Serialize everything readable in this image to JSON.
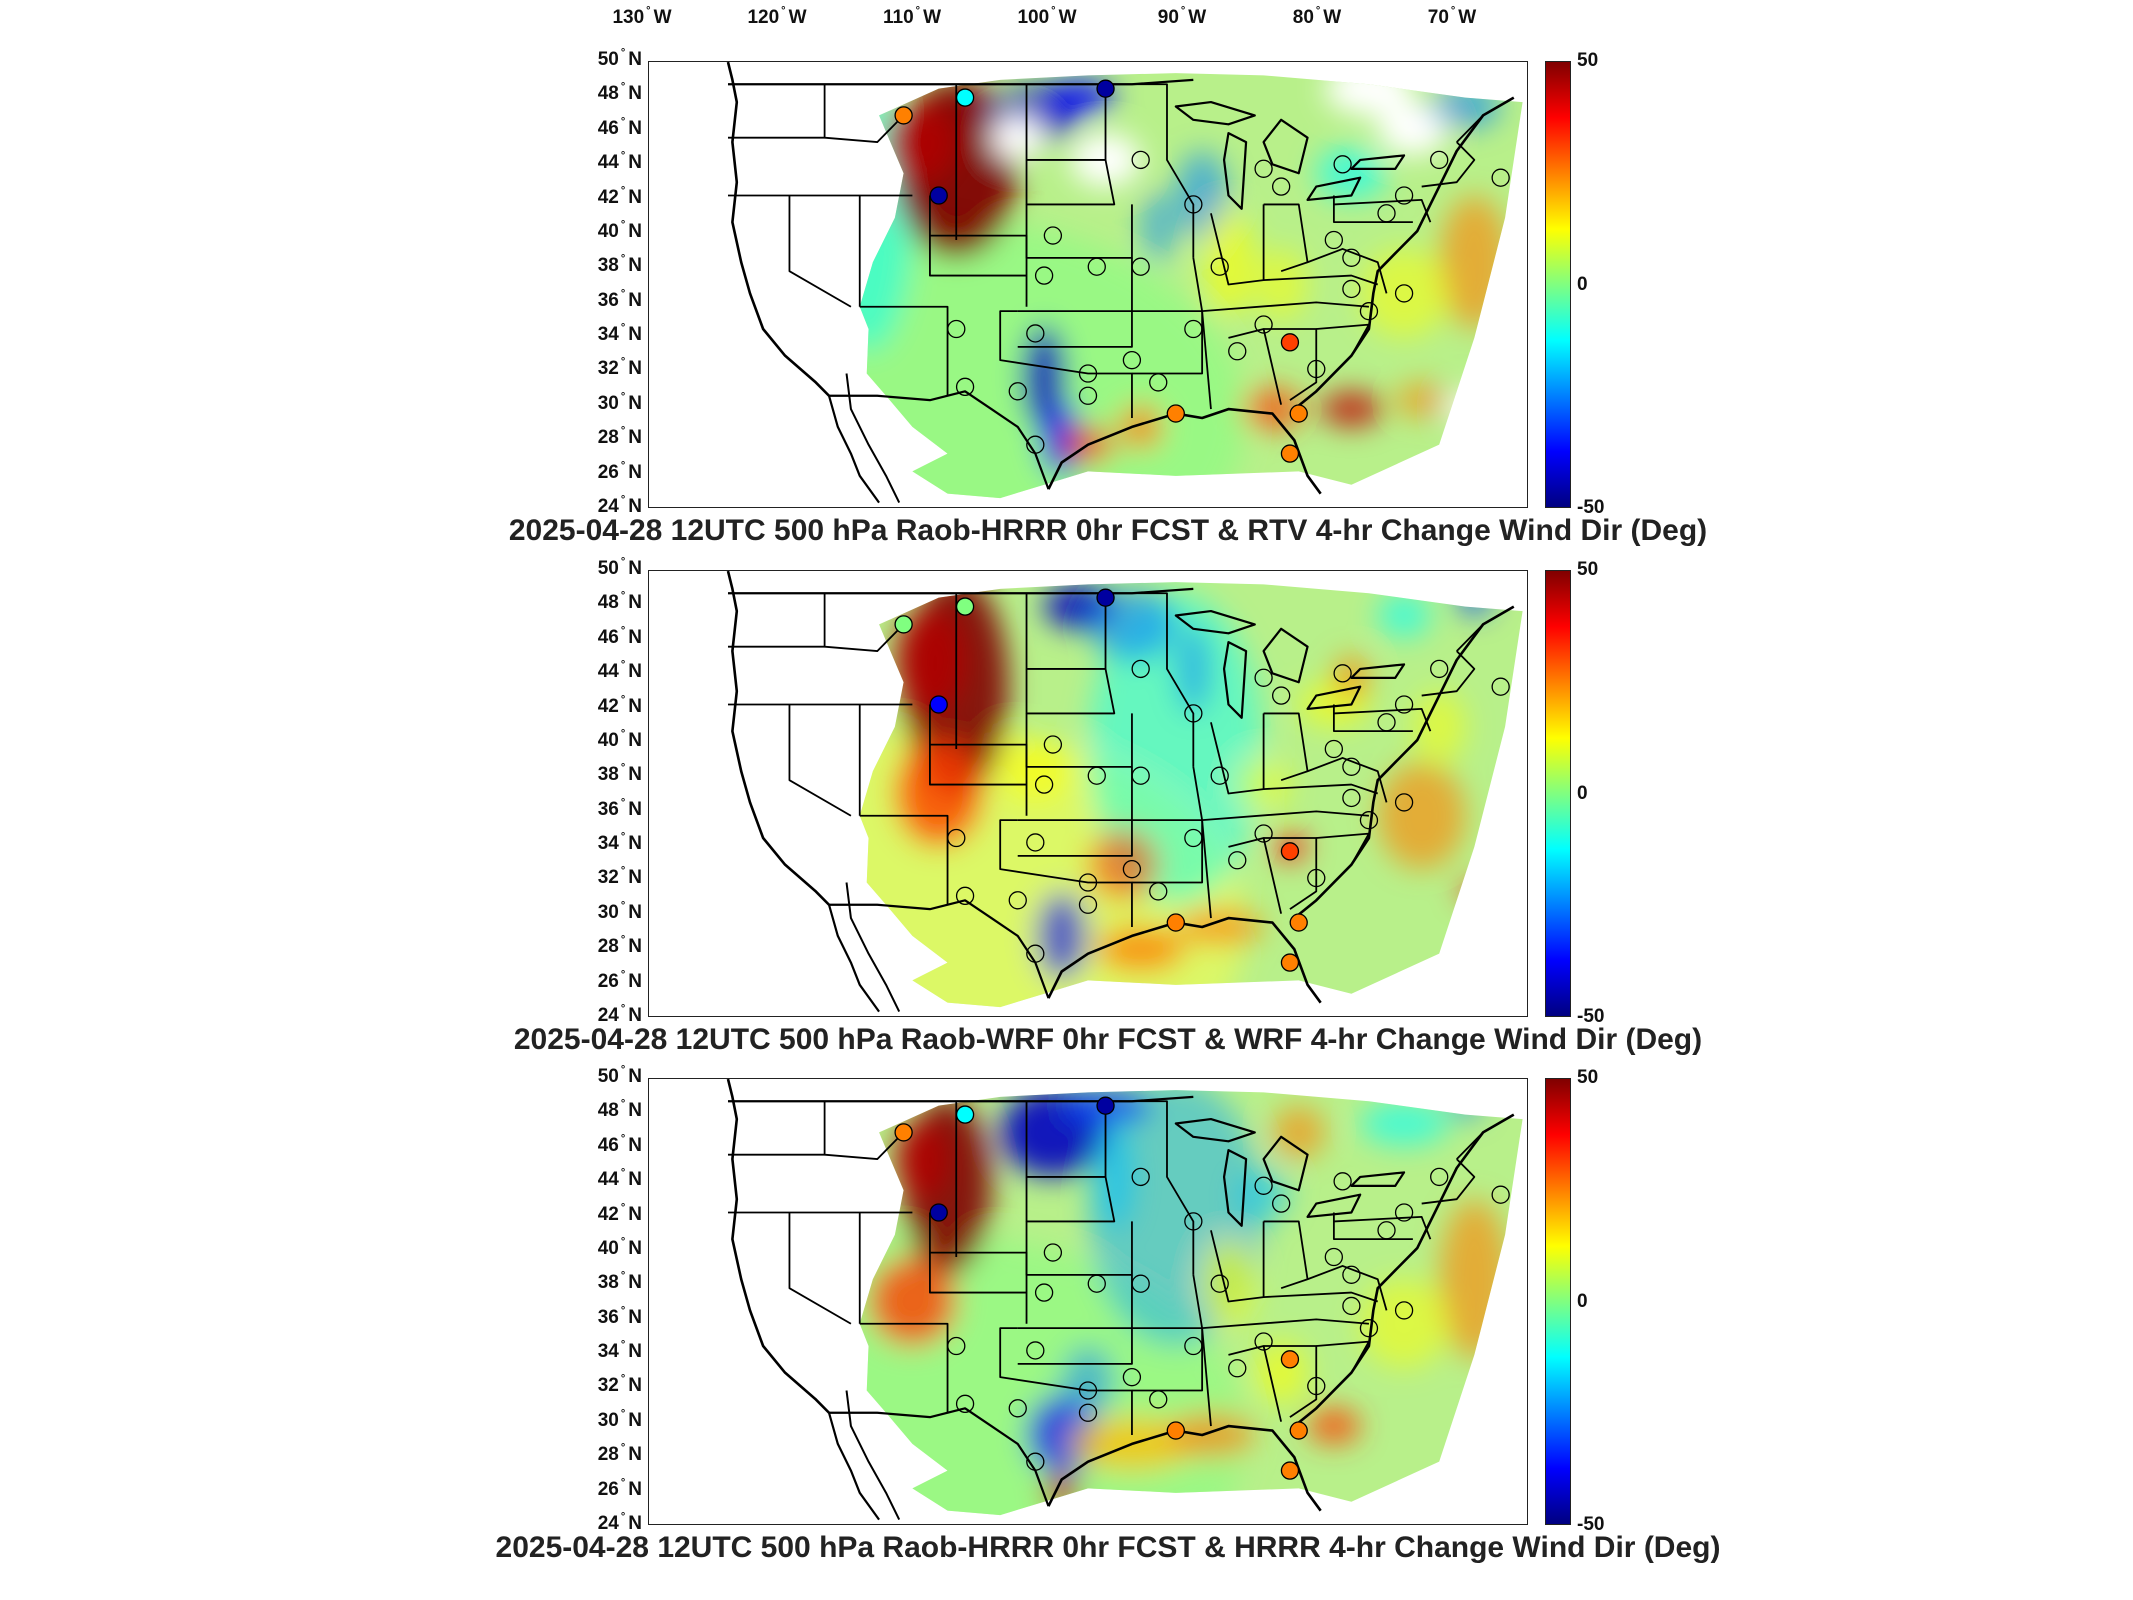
{
  "lon_labels": [
    {
      "num": "130",
      "hemi": "W"
    },
    {
      "num": "120",
      "hemi": "W"
    },
    {
      "num": "110",
      "hemi": "W"
    },
    {
      "num": "100",
      "hemi": "W"
    },
    {
      "num": "90",
      "hemi": "W"
    },
    {
      "num": "80",
      "hemi": "W"
    },
    {
      "num": "70",
      "hemi": "W"
    }
  ],
  "lat_labels": [
    {
      "num": "50",
      "hemi": "N"
    },
    {
      "num": "48",
      "hemi": "N"
    },
    {
      "num": "46",
      "hemi": "N"
    },
    {
      "num": "44",
      "hemi": "N"
    },
    {
      "num": "42",
      "hemi": "N"
    },
    {
      "num": "40",
      "hemi": "N"
    },
    {
      "num": "38",
      "hemi": "N"
    },
    {
      "num": "36",
      "hemi": "N"
    },
    {
      "num": "34",
      "hemi": "N"
    },
    {
      "num": "32",
      "hemi": "N"
    },
    {
      "num": "30",
      "hemi": "N"
    },
    {
      "num": "28",
      "hemi": "N"
    },
    {
      "num": "26",
      "hemi": "N"
    },
    {
      "num": "24",
      "hemi": "N"
    }
  ],
  "colorbar": {
    "max": "50",
    "mid": "0",
    "min": "-50"
  },
  "colors": {
    "max": "#800000",
    "zero": "#80ff80",
    "min": "#000080"
  },
  "panels": [
    {
      "title": "2025-04-28 12UTC 500 hPa Raob-HRRR 0hr FCST & RTV 4-hr Change Wind Dir (Deg)"
    },
    {
      "title": "2025-04-28 12UTC 500 hPa Raob-WRF 0hr FCST & WRF 4-hr Change Wind Dir (Deg)"
    },
    {
      "title": "2025-04-28 12UTC 500 hPa Raob-HRRR 0hr FCST & HRRR 4-hr Change Wind Dir (Deg)"
    }
  ]
}
